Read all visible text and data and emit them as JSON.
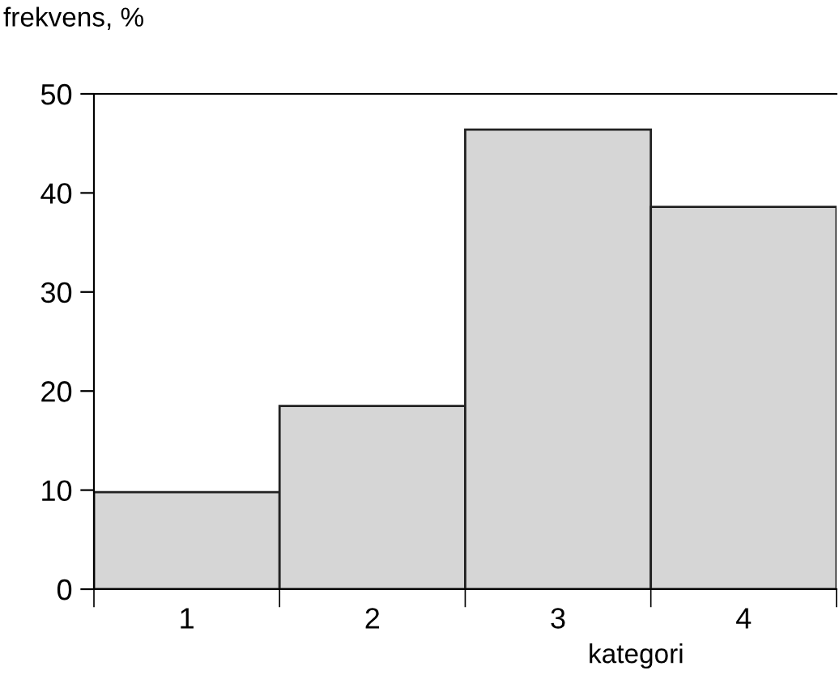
{
  "chart_data": {
    "type": "bar",
    "ylabel": "frekvens, %",
    "xlabel": "kategori",
    "categories": [
      "1",
      "2",
      "3",
      "4"
    ],
    "values": [
      9.8,
      18.5,
      46.4,
      38.6
    ],
    "color": "#d6d6d6",
    "ylim": [
      0,
      50
    ],
    "yticks": [
      0,
      10,
      20,
      30,
      40,
      50
    ],
    "grid": false,
    "legend": false
  }
}
